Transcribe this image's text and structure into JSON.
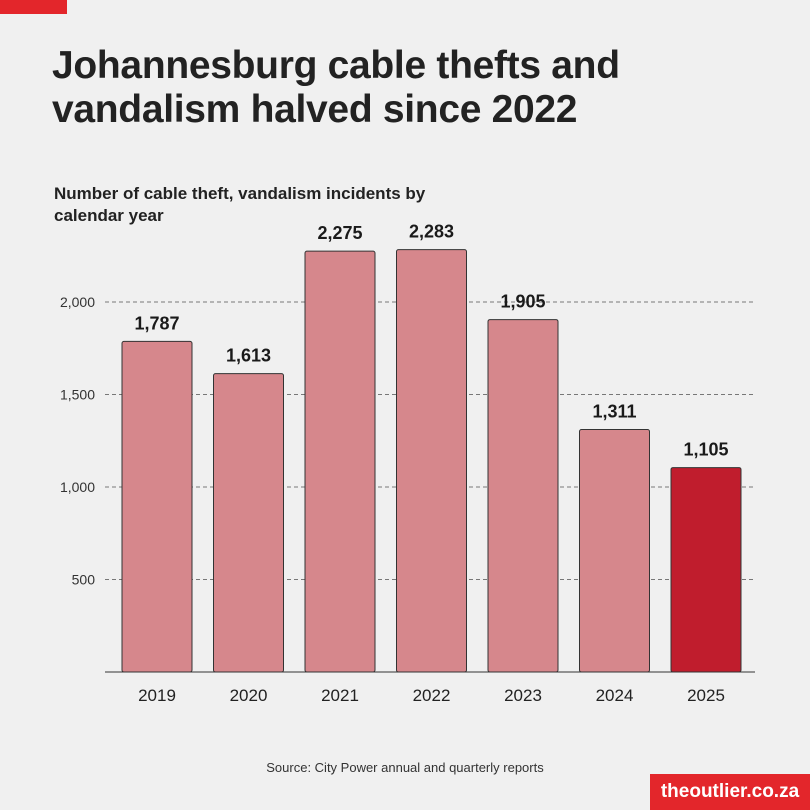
{
  "title": "Johannesburg cable thefts and vandalism halved since 2022",
  "source": "Source: City Power annual and quarterly reports",
  "brand": "theoutlier.co.za",
  "colors": {
    "bar": "#d6878c",
    "highlight": "#c01d2d",
    "accent": "#e3262b",
    "background": "#f0f0f0"
  },
  "chart_data": {
    "type": "bar",
    "title": "",
    "subtitle": "Number of cable theft, vandalism incidents by calendar year",
    "xlabel": "",
    "ylabel": "",
    "categories": [
      "2019",
      "2020",
      "2021",
      "2022",
      "2023",
      "2024",
      "2025"
    ],
    "values": [
      1787,
      1613,
      2275,
      2283,
      1905,
      1311,
      1105
    ],
    "value_labels": [
      "1,787",
      "1,613",
      "2,275",
      "2,283",
      "1,905",
      "1,311",
      "1,105"
    ],
    "highlight_category": "2025",
    "ylim": [
      0,
      2300
    ],
    "yticks": [
      500,
      1000,
      1500,
      2000
    ],
    "ytick_labels": [
      "500",
      "1,000",
      "1,500",
      "2,000"
    ],
    "grid": true,
    "legend": "none"
  }
}
